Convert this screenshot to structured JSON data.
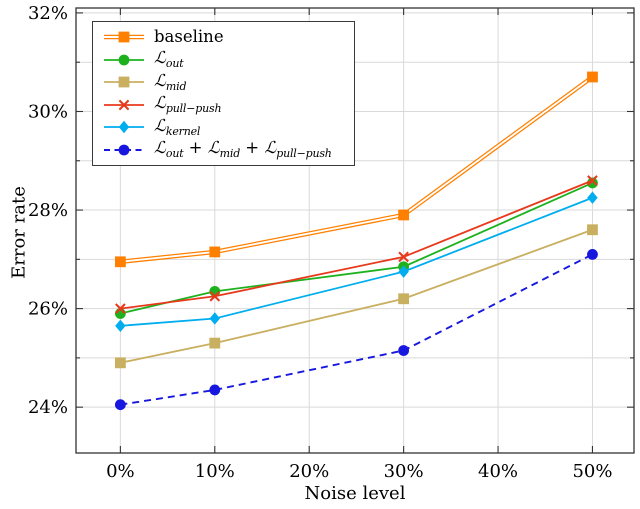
{
  "chart_data": {
    "type": "line",
    "title": "",
    "xlabel": "Noise level",
    "ylabel": "Error rate",
    "grid": true,
    "legend_position": "top-left",
    "xlim": [
      -4.7,
      54.4
    ],
    "ylim": [
      23.07,
      32.1
    ],
    "x_tick_values": [
      0,
      10,
      20,
      30,
      40,
      50
    ],
    "x_tick_labels": [
      "0%",
      "10%",
      "20%",
      "30%",
      "40%",
      "50%"
    ],
    "y_tick_values": [
      24,
      26,
      28,
      30,
      32
    ],
    "y_tick_labels": [
      "24%",
      "26%",
      "28%",
      "30%",
      "32%"
    ],
    "y_minor_tick_values": [
      25,
      27,
      29,
      31
    ],
    "x": [
      0,
      10,
      30,
      50
    ],
    "series": [
      {
        "name": "baseline",
        "color": "#FF8000",
        "marker": "square",
        "line": "double",
        "values": [
          26.95,
          27.15,
          27.9,
          30.7
        ],
        "label_parts": [
          {
            "t": "baseline"
          }
        ]
      },
      {
        "name": "L_out",
        "color": "#1DB21D",
        "marker": "circle",
        "line": "solid",
        "values": [
          25.9,
          26.35,
          26.85,
          28.55
        ],
        "label_parts": [
          {
            "t": "ℒ",
            "sub": "out"
          }
        ]
      },
      {
        "name": "L_mid",
        "color": "#C9AF60",
        "marker": "square",
        "line": "solid",
        "values": [
          24.9,
          25.3,
          26.2,
          27.6
        ],
        "label_parts": [
          {
            "t": "ℒ",
            "sub": "mid"
          }
        ]
      },
      {
        "name": "L_pull-push",
        "color": "#E8391D",
        "marker": "x",
        "line": "solid",
        "values": [
          26.0,
          26.25,
          27.05,
          28.6
        ],
        "label_parts": [
          {
            "t": "ℒ",
            "sub": "pull−push"
          }
        ]
      },
      {
        "name": "L_kernel",
        "color": "#00ADEF",
        "marker": "diamond",
        "line": "solid",
        "values": [
          25.65,
          25.8,
          26.75,
          28.25
        ],
        "label_parts": [
          {
            "t": "ℒ",
            "sub": "kernel"
          }
        ]
      },
      {
        "name": "L_out+L_mid+L_pull-push",
        "color": "#1717E0",
        "marker": "circle",
        "line": "dashed",
        "values": [
          24.05,
          24.35,
          25.15,
          27.1
        ],
        "label_parts": [
          {
            "t": "ℒ",
            "sub": "out"
          },
          {
            "t": " + "
          },
          {
            "t": "ℒ",
            "sub": "mid"
          },
          {
            "t": " + "
          },
          {
            "t": "ℒ",
            "sub": "pull−push"
          }
        ]
      }
    ],
    "colors": {
      "grid": "#D9D9D9",
      "axis": "#333333",
      "double_line_core": "#FFFFFF",
      "text": "#000000"
    }
  }
}
